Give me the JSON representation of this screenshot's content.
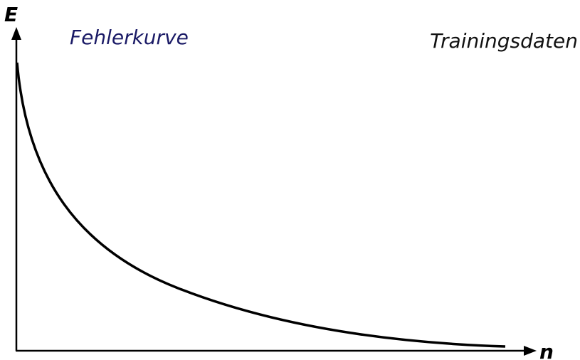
{
  "axes": {
    "y_label": "E",
    "x_label": "n"
  },
  "labels": {
    "curve": "Fehlerkurve",
    "dataset": "Trainingsdaten"
  }
}
